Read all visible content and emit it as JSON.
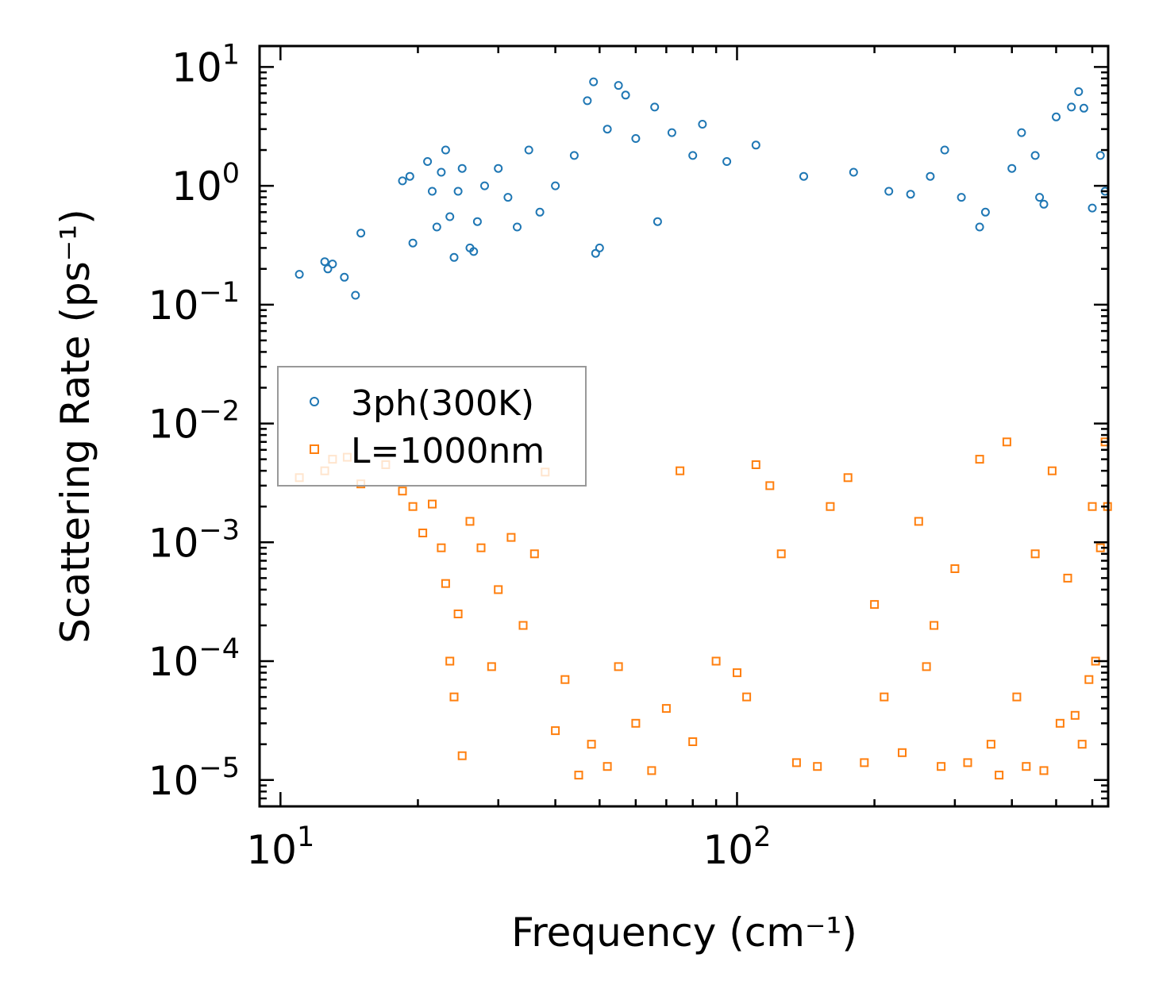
{
  "chart_data": {
    "type": "scatter",
    "title": "",
    "xlabel": "Frequency (cm⁻¹)",
    "ylabel": "Scattering Rate (ps⁻¹)",
    "xscale": "log",
    "yscale": "log",
    "xlim": [
      9,
      650
    ],
    "ylim": [
      6e-06,
      15
    ],
    "x_ticks": [
      {
        "value": 10,
        "base": "10",
        "exp": "1"
      },
      {
        "value": 100,
        "base": "10",
        "exp": "2"
      }
    ],
    "y_ticks": [
      {
        "value": 10,
        "base": "10",
        "exp": "1"
      },
      {
        "value": 1,
        "base": "10",
        "exp": "0"
      },
      {
        "value": 0.1,
        "base": "10",
        "exp": "−1"
      },
      {
        "value": 0.01,
        "base": "10",
        "exp": "−2"
      },
      {
        "value": 0.001,
        "base": "10",
        "exp": "−3"
      },
      {
        "value": 0.0001,
        "base": "10",
        "exp": "−4"
      },
      {
        "value": 1e-05,
        "base": "10",
        "exp": "−5"
      }
    ],
    "legend": {
      "position": "center-left"
    },
    "series": [
      {
        "name": "3ph(300K)",
        "marker": "circle",
        "color": "#1f77b4",
        "points": [
          [
            11.0,
            0.18
          ],
          [
            12.5,
            0.23
          ],
          [
            12.7,
            0.2
          ],
          [
            13.0,
            0.22
          ],
          [
            13.8,
            0.17
          ],
          [
            14.6,
            0.12
          ],
          [
            15.0,
            0.4
          ],
          [
            18.5,
            1.1
          ],
          [
            19.2,
            1.2
          ],
          [
            19.5,
            0.33
          ],
          [
            21.0,
            1.6
          ],
          [
            21.5,
            0.9
          ],
          [
            22.0,
            0.45
          ],
          [
            22.5,
            1.3
          ],
          [
            23.0,
            2.0
          ],
          [
            23.5,
            0.55
          ],
          [
            24.0,
            0.25
          ],
          [
            24.5,
            0.9
          ],
          [
            25.0,
            1.4
          ],
          [
            26.0,
            0.3
          ],
          [
            26.5,
            0.28
          ],
          [
            27.0,
            0.5
          ],
          [
            28.0,
            1.0
          ],
          [
            30.0,
            1.4
          ],
          [
            31.5,
            0.8
          ],
          [
            33.0,
            0.45
          ],
          [
            35.0,
            2.0
          ],
          [
            37.0,
            0.6
          ],
          [
            40.0,
            1.0
          ],
          [
            44.0,
            1.8
          ],
          [
            47.0,
            5.2
          ],
          [
            48.5,
            7.5
          ],
          [
            49.0,
            0.27
          ],
          [
            50.0,
            0.3
          ],
          [
            52.0,
            3.0
          ],
          [
            55.0,
            7.0
          ],
          [
            57.0,
            5.8
          ],
          [
            60.0,
            2.5
          ],
          [
            66.0,
            4.6
          ],
          [
            67.0,
            0.5
          ],
          [
            72.0,
            2.8
          ],
          [
            80.0,
            1.8
          ],
          [
            84.0,
            3.3
          ],
          [
            95.0,
            1.6
          ],
          [
            110.0,
            2.2
          ],
          [
            140.0,
            1.2
          ],
          [
            180.0,
            1.3
          ],
          [
            215.0,
            0.9
          ],
          [
            240.0,
            0.85
          ],
          [
            265.0,
            1.2
          ],
          [
            285.0,
            2.0
          ],
          [
            310.0,
            0.8
          ],
          [
            340.0,
            0.45
          ],
          [
            350.0,
            0.6
          ],
          [
            400.0,
            1.4
          ],
          [
            420.0,
            2.8
          ],
          [
            450.0,
            1.8
          ],
          [
            460.0,
            0.8
          ],
          [
            470.0,
            0.7
          ],
          [
            500.0,
            3.8
          ],
          [
            540.0,
            4.6
          ],
          [
            560.0,
            6.2
          ],
          [
            575.0,
            4.5
          ],
          [
            600.0,
            0.65
          ],
          [
            625.0,
            1.8
          ],
          [
            640.0,
            0.9
          ]
        ]
      },
      {
        "name": "L=1000nm",
        "marker": "square",
        "color": "#ff7f0e",
        "points": [
          [
            11.0,
            0.0035
          ],
          [
            12.5,
            0.004
          ],
          [
            13.0,
            0.005
          ],
          [
            14.0,
            0.0052
          ],
          [
            15.0,
            0.0031
          ],
          [
            17.0,
            0.0045
          ],
          [
            18.5,
            0.0027
          ],
          [
            19.5,
            0.002
          ],
          [
            20.5,
            0.0012
          ],
          [
            21.5,
            0.0021
          ],
          [
            22.5,
            0.0009
          ],
          [
            23.0,
            0.00045
          ],
          [
            23.5,
            0.0001
          ],
          [
            24.0,
            5e-05
          ],
          [
            24.5,
            0.00025
          ],
          [
            25.0,
            1.6e-05
          ],
          [
            26.0,
            0.0015
          ],
          [
            27.5,
            0.0009
          ],
          [
            29.0,
            9e-05
          ],
          [
            30.0,
            0.0004
          ],
          [
            32.0,
            0.0011
          ],
          [
            34.0,
            0.0002
          ],
          [
            36.0,
            0.0008
          ],
          [
            38.0,
            0.0039
          ],
          [
            40.0,
            2.6e-05
          ],
          [
            42.0,
            7e-05
          ],
          [
            45.0,
            1.1e-05
          ],
          [
            48.0,
            2e-05
          ],
          [
            52.0,
            1.3e-05
          ],
          [
            55.0,
            9e-05
          ],
          [
            60.0,
            3e-05
          ],
          [
            65.0,
            1.2e-05
          ],
          [
            70.0,
            4e-05
          ],
          [
            75.0,
            0.004
          ],
          [
            80.0,
            2.1e-05
          ],
          [
            90.0,
            0.0001
          ],
          [
            100.0,
            8e-05
          ],
          [
            105.0,
            5e-05
          ],
          [
            110.0,
            0.0045
          ],
          [
            118.0,
            0.003
          ],
          [
            125.0,
            0.0008
          ],
          [
            135.0,
            1.4e-05
          ],
          [
            150.0,
            1.3e-05
          ],
          [
            160.0,
            0.002
          ],
          [
            175.0,
            0.0035
          ],
          [
            190.0,
            1.4e-05
          ],
          [
            200.0,
            0.0003
          ],
          [
            210.0,
            5e-05
          ],
          [
            230.0,
            1.7e-05
          ],
          [
            250.0,
            0.0015
          ],
          [
            260.0,
            9e-05
          ],
          [
            270.0,
            0.0002
          ],
          [
            280.0,
            1.3e-05
          ],
          [
            300.0,
            0.0006
          ],
          [
            320.0,
            1.4e-05
          ],
          [
            340.0,
            0.005
          ],
          [
            360.0,
            2e-05
          ],
          [
            375.0,
            1.1e-05
          ],
          [
            390.0,
            0.007
          ],
          [
            410.0,
            5e-05
          ],
          [
            430.0,
            1.3e-05
          ],
          [
            450.0,
            0.0008
          ],
          [
            470.0,
            1.2e-05
          ],
          [
            490.0,
            0.004
          ],
          [
            510.0,
            3e-05
          ],
          [
            530.0,
            0.0005
          ],
          [
            550.0,
            3.5e-05
          ],
          [
            570.0,
            2e-05
          ],
          [
            590.0,
            7e-05
          ],
          [
            600.0,
            0.002
          ],
          [
            610.0,
            0.0001
          ],
          [
            625.0,
            0.0009
          ],
          [
            640.0,
            0.007
          ],
          [
            648.0,
            0.002
          ]
        ]
      }
    ]
  }
}
